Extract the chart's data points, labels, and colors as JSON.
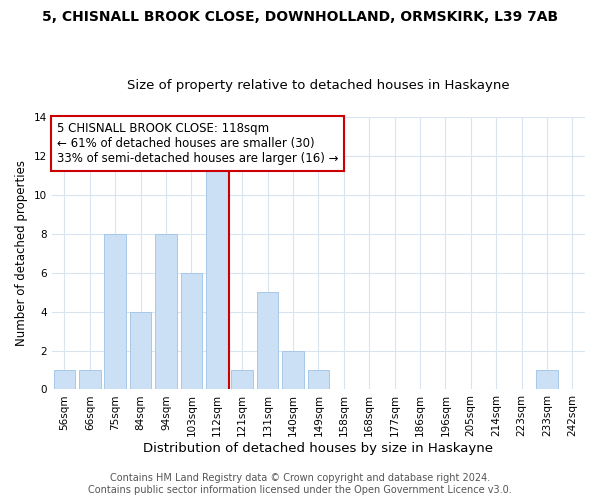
{
  "title_line1": "5, CHISNALL BROOK CLOSE, DOWNHOLLAND, ORMSKIRK, L39 7AB",
  "title_line2": "Size of property relative to detached houses in Haskayne",
  "xlabel": "Distribution of detached houses by size in Haskayne",
  "ylabel": "Number of detached properties",
  "bar_labels": [
    "56sqm",
    "66sqm",
    "75sqm",
    "84sqm",
    "94sqm",
    "103sqm",
    "112sqm",
    "121sqm",
    "131sqm",
    "140sqm",
    "149sqm",
    "158sqm",
    "168sqm",
    "177sqm",
    "186sqm",
    "196sqm",
    "205sqm",
    "214sqm",
    "223sqm",
    "233sqm",
    "242sqm"
  ],
  "bar_values": [
    1,
    1,
    8,
    4,
    8,
    6,
    12,
    1,
    5,
    2,
    1,
    0,
    0,
    0,
    0,
    0,
    0,
    0,
    0,
    1,
    0
  ],
  "bar_color": "#cce0f5",
  "bar_edge_color": "#a8c8e8",
  "red_line_x": 6.5,
  "annotation_text": "5 CHISNALL BROOK CLOSE: 118sqm\n← 61% of detached houses are smaller (30)\n33% of semi-detached houses are larger (16) →",
  "ylim": [
    0,
    14
  ],
  "yticks": [
    0,
    2,
    4,
    6,
    8,
    10,
    12,
    14
  ],
  "footer_line1": "Contains HM Land Registry data © Crown copyright and database right 2024.",
  "footer_line2": "Contains public sector information licensed under the Open Government Licence v3.0.",
  "background_color": "#ffffff",
  "grid_color": "#d8e4f0",
  "annotation_box_color": "#ffffff",
  "annotation_box_edge": "#cc0000",
  "red_line_color": "#cc0000",
  "title_fontsize": 10,
  "subtitle_fontsize": 9.5,
  "xlabel_fontsize": 9.5,
  "ylabel_fontsize": 8.5,
  "tick_fontsize": 7.5,
  "annotation_fontsize": 8.5,
  "footer_fontsize": 7
}
